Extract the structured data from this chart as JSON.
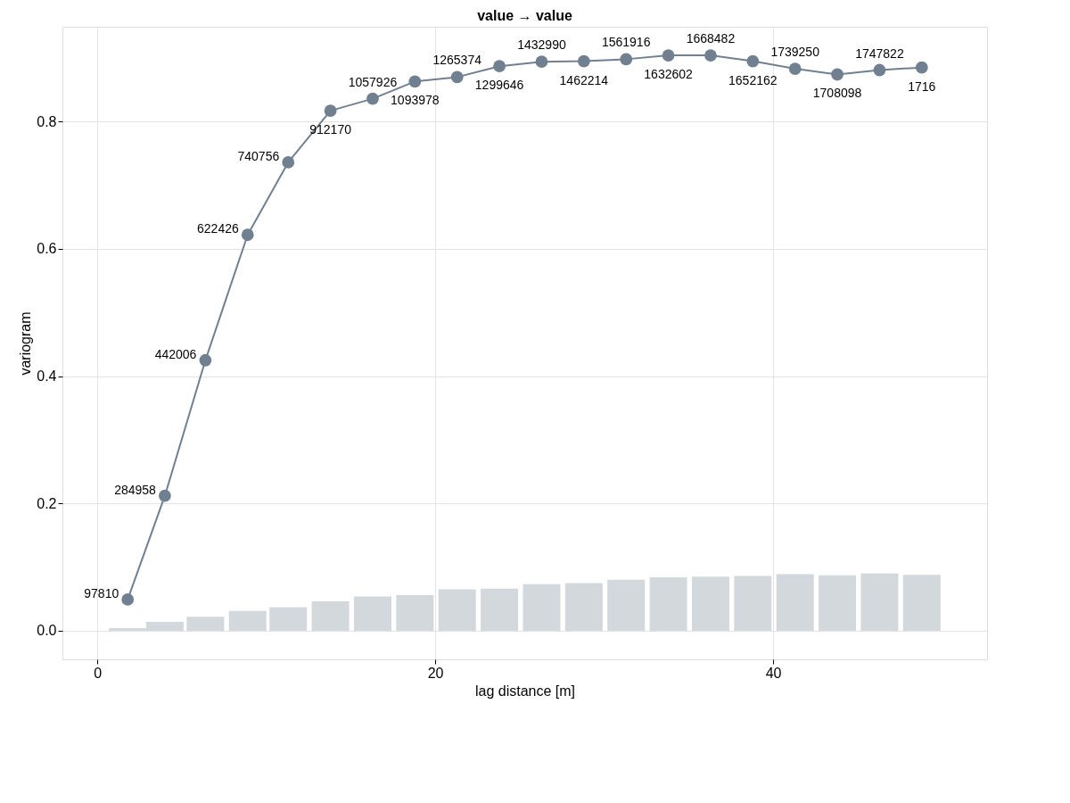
{
  "chart_data": {
    "type": "line",
    "title": "value → value",
    "xlabel": "lag distance [m]",
    "ylabel": "variogram",
    "xlim": [
      -1.8,
      52.4
    ],
    "xticks": [
      0,
      20,
      40
    ],
    "ylim": [
      -0.045,
      0.949
    ],
    "yticks": [
      {
        "value": 0,
        "label": "0.0"
      },
      {
        "value": 0.2,
        "label": "0.2"
      },
      {
        "value": 0.4,
        "label": "0.4"
      },
      {
        "value": 0.6,
        "label": "0.6"
      },
      {
        "value": 0.8,
        "label": "0.8"
      }
    ],
    "grid": true,
    "marker": "circle",
    "series": [
      {
        "type": "bar",
        "color": "#d3d8dc",
        "x": [
          1.8,
          4.0,
          6.4,
          8.9,
          11.3,
          13.8,
          16.3,
          18.8,
          21.3,
          23.8,
          26.3,
          28.8,
          31.3,
          33.8,
          36.3,
          38.8,
          41.3,
          43.8,
          46.3,
          48.8
        ],
        "values": [
          0.004,
          0.014,
          0.022,
          0.031,
          0.037,
          0.046,
          0.054,
          0.056,
          0.065,
          0.066,
          0.073,
          0.075,
          0.08,
          0.084,
          0.085,
          0.086,
          0.089,
          0.087,
          0.09,
          0.088
        ]
      },
      {
        "color": "#708090",
        "x": [
          1.8,
          4.0,
          6.4,
          8.9,
          11.3,
          13.8,
          16.3,
          18.8,
          21.3,
          23.8,
          26.3,
          28.8,
          31.3,
          33.8,
          36.3,
          38.8,
          41.3,
          43.8,
          46.3,
          48.8
        ],
        "values": [
          0.049,
          0.212,
          0.425,
          0.622,
          0.736,
          0.817,
          0.836,
          0.863,
          0.87,
          0.887,
          0.894,
          0.895,
          0.898,
          0.904,
          0.904,
          0.895,
          0.883,
          0.874,
          0.881,
          0.885
        ]
      }
    ],
    "annotations": [
      {
        "text": "97810",
        "x": 1.8,
        "y": 0.049
      },
      {
        "text": "284958",
        "x": 4.0,
        "y": 0.212
      },
      {
        "text": "442006",
        "x": 6.4,
        "y": 0.425
      },
      {
        "text": "622426",
        "x": 8.9,
        "y": 0.622
      },
      {
        "text": "740756",
        "x": 11.3,
        "y": 0.736
      },
      {
        "text": "912170",
        "x": 13.8,
        "y": 0.817
      },
      {
        "text": "1057926",
        "x": 16.3,
        "y": 0.836
      },
      {
        "text": "1093978",
        "x": 18.8,
        "y": 0.863
      },
      {
        "text": "1265374",
        "x": 21.3,
        "y": 0.87
      },
      {
        "text": "1299646",
        "x": 23.8,
        "y": 0.887
      },
      {
        "text": "1432990",
        "x": 26.3,
        "y": 0.894
      },
      {
        "text": "1462214",
        "x": 28.8,
        "y": 0.895
      },
      {
        "text": "1561916",
        "x": 31.3,
        "y": 0.898
      },
      {
        "text": "1632602",
        "x": 33.8,
        "y": 0.904
      },
      {
        "text": "1668482",
        "x": 36.3,
        "y": 0.904
      },
      {
        "text": "1652162",
        "x": 38.8,
        "y": 0.895
      },
      {
        "text": "1739250",
        "x": 41.3,
        "y": 0.883
      },
      {
        "text": "1708098",
        "x": 43.8,
        "y": 0.874
      },
      {
        "text": "1747822",
        "x": 46.3,
        "y": 0.881
      },
      {
        "text": "1716",
        "x": 48.8,
        "y": 0.885
      }
    ]
  }
}
